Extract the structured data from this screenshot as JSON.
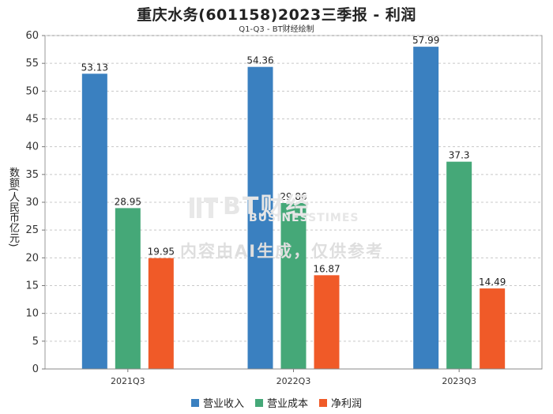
{
  "chart_data": {
    "type": "bar",
    "title": "重庆水务(601158)2023三季报 - 利润",
    "subtitle": "Q1-Q3 - BT财经绘制",
    "ylabel": "数额(人民币亿元)",
    "xlabel": "",
    "ylim": [
      0,
      60
    ],
    "yticks": [
      0,
      5,
      10,
      15,
      20,
      25,
      30,
      35,
      40,
      45,
      50,
      55,
      60
    ],
    "categories": [
      "2021Q3",
      "2022Q3",
      "2023Q3"
    ],
    "series": [
      {
        "name": "营业收入",
        "color": "#3a80c0",
        "values": [
          53.13,
          54.36,
          57.99
        ],
        "labels": [
          "53.13",
          "54.36",
          "57.99"
        ]
      },
      {
        "name": "营业成本",
        "color": "#45a878",
        "values": [
          28.95,
          29.86,
          37.3
        ],
        "labels": [
          "28.95",
          "29.86",
          "37.3"
        ]
      },
      {
        "name": "净利润",
        "color": "#f05a28",
        "values": [
          19.95,
          16.87,
          14.49
        ],
        "labels": [
          "19.95",
          "16.87",
          "14.49"
        ]
      }
    ],
    "grid": true,
    "legend": "bottom-center"
  },
  "watermark": {
    "brand": "BT财经",
    "brand_en": "BUSINESSTIMES",
    "notice": "内容由AI生成，仅供参考"
  }
}
